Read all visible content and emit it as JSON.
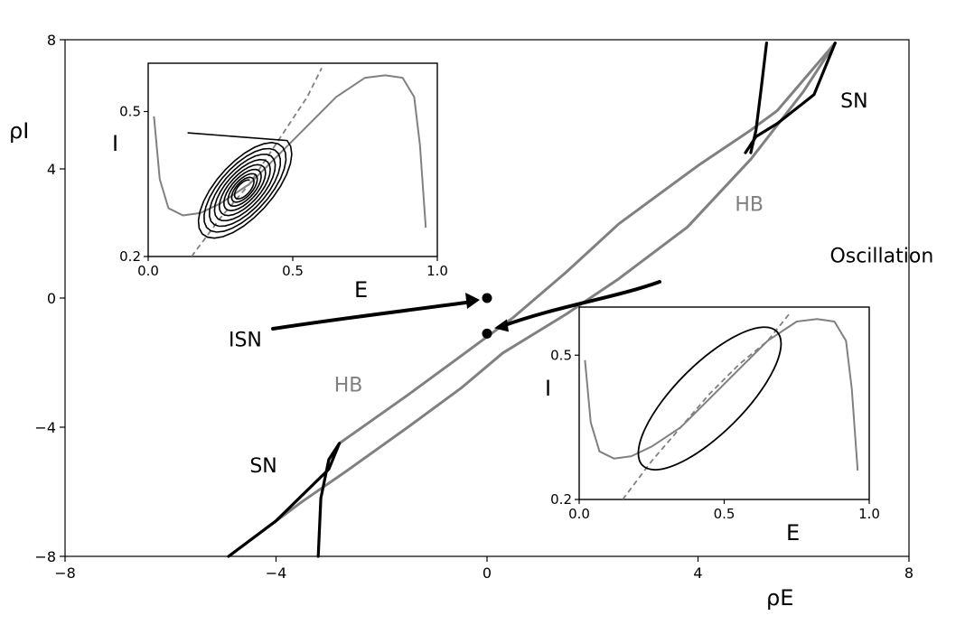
{
  "chart_data": [
    {
      "type": "line",
      "xlabel": "ρE",
      "ylabel": "ρI",
      "xlim": [
        -8,
        8
      ],
      "ylim": [
        -8,
        8
      ],
      "xticks": [
        "−8",
        "−4",
        "0",
        "4",
        "8"
      ],
      "yticks": [
        "−8",
        "−4",
        "0",
        "4",
        "8"
      ],
      "grid": false,
      "series": [
        {
          "name": "HB",
          "color": "#808080",
          "x": [
            -4.9,
            -3.5,
            -2.7,
            -1.5,
            -0.5,
            0.3,
            1.5,
            2.5,
            3.8,
            5.0,
            6.0,
            6.6
          ],
          "y": [
            -8.0,
            -6.3,
            -5.4,
            -4.0,
            -2.8,
            -1.7,
            -0.5,
            0.6,
            2.2,
            4.3,
            6.4,
            7.9
          ]
        },
        {
          "name": "HB",
          "color": "#808080",
          "x": [
            -2.8,
            -1.5,
            -0.5,
            0.5,
            1.5,
            2.5,
            4.0,
            5.0,
            5.5,
            6.6
          ],
          "y": [
            -4.5,
            -3.0,
            -1.8,
            -0.6,
            0.8,
            2.3,
            4.1,
            5.2,
            5.8,
            7.9
          ]
        },
        {
          "name": "SN",
          "color": "#000000",
          "x": [
            -4.9,
            -4.0,
            -3.0,
            -2.8
          ],
          "y": [
            -8.0,
            -6.9,
            -5.3,
            -4.5
          ]
        },
        {
          "name": "SN",
          "color": "#000000",
          "x": [
            -3.2,
            -3.15,
            -3.0,
            -2.8
          ],
          "y": [
            -8.0,
            -6.2,
            -5.0,
            -4.5
          ]
        },
        {
          "name": "SN",
          "color": "#000000",
          "x": [
            4.9,
            5.1,
            5.5,
            6.2,
            6.6
          ],
          "y": [
            4.5,
            5.0,
            5.4,
            6.3,
            7.9
          ]
        },
        {
          "name": "SN",
          "color": "#000000",
          "x": [
            5.0,
            5.1,
            5.2,
            5.3
          ],
          "y": [
            4.5,
            5.2,
            6.5,
            7.9
          ]
        }
      ],
      "points": [
        {
          "label": "ISN",
          "x": 0.0,
          "y": 0.0
        },
        {
          "label": "Oscillation",
          "x": 0.0,
          "y": -1.1
        }
      ],
      "annotations": [
        {
          "text": "SN",
          "x": 6.7,
          "y": 5.9
        },
        {
          "text": "HB",
          "x": 4.7,
          "y": 2.7,
          "color": "#808080"
        },
        {
          "text": "Oscillation",
          "x": 6.5,
          "y": 1.1
        },
        {
          "text": "ISN",
          "x": -4.9,
          "y": -1.5
        },
        {
          "text": "HB",
          "x": -2.9,
          "y": -2.9,
          "color": "#808080"
        },
        {
          "text": "SN",
          "x": -4.5,
          "y": -5.4
        }
      ]
    },
    {
      "type": "line",
      "xlabel": "E",
      "ylabel": "I",
      "xlim": [
        0.0,
        1.0
      ],
      "ylim": [
        0.2,
        0.6
      ],
      "xticks": [
        "0.0",
        "0.5",
        "1.0"
      ],
      "yticks": [
        "0.2",
        "0.5"
      ],
      "series": [
        {
          "color": "#808080",
          "style": "solid",
          "x": [
            0.02,
            0.04,
            0.07,
            0.12,
            0.18,
            0.25,
            0.35,
            0.45,
            0.55,
            0.65,
            0.75,
            0.82,
            0.88,
            0.92,
            0.94,
            0.96
          ],
          "y": [
            0.49,
            0.36,
            0.3,
            0.285,
            0.29,
            0.31,
            0.35,
            0.41,
            0.47,
            0.53,
            0.57,
            0.575,
            0.57,
            0.53,
            0.43,
            0.26
          ]
        },
        {
          "color": "#808080",
          "style": "dashed",
          "x": [
            0.15,
            0.25,
            0.35,
            0.45,
            0.55,
            0.6
          ],
          "y": [
            0.2,
            0.28,
            0.35,
            0.44,
            0.53,
            0.59
          ]
        },
        {
          "color": "#000000",
          "style": "spiral",
          "x": [
            0.33
          ],
          "y": [
            0.34
          ]
        }
      ]
    },
    {
      "type": "line",
      "xlabel": "E",
      "ylabel": "I",
      "xlim": [
        0.0,
        1.0
      ],
      "ylim": [
        0.2,
        0.6
      ],
      "xticks": [
        "0.0",
        "0.5",
        "1.0"
      ],
      "yticks": [
        "0.2",
        "0.5"
      ],
      "series": [
        {
          "color": "#808080",
          "style": "solid",
          "x": [
            0.02,
            0.04,
            0.07,
            0.12,
            0.18,
            0.25,
            0.35,
            0.45,
            0.55,
            0.65,
            0.75,
            0.82,
            0.88,
            0.92,
            0.94,
            0.96
          ],
          "y": [
            0.49,
            0.36,
            0.3,
            0.285,
            0.29,
            0.31,
            0.35,
            0.41,
            0.47,
            0.53,
            0.57,
            0.575,
            0.57,
            0.53,
            0.43,
            0.26
          ]
        },
        {
          "color": "#808080",
          "style": "dashed",
          "x": [
            0.15,
            0.25,
            0.35,
            0.45,
            0.55,
            0.65,
            0.73
          ],
          "y": [
            0.2,
            0.28,
            0.35,
            0.42,
            0.48,
            0.53,
            0.59
          ]
        },
        {
          "color": "#000000",
          "style": "limit-cycle",
          "x": [
            0.45
          ],
          "y": [
            0.41
          ]
        }
      ]
    }
  ]
}
